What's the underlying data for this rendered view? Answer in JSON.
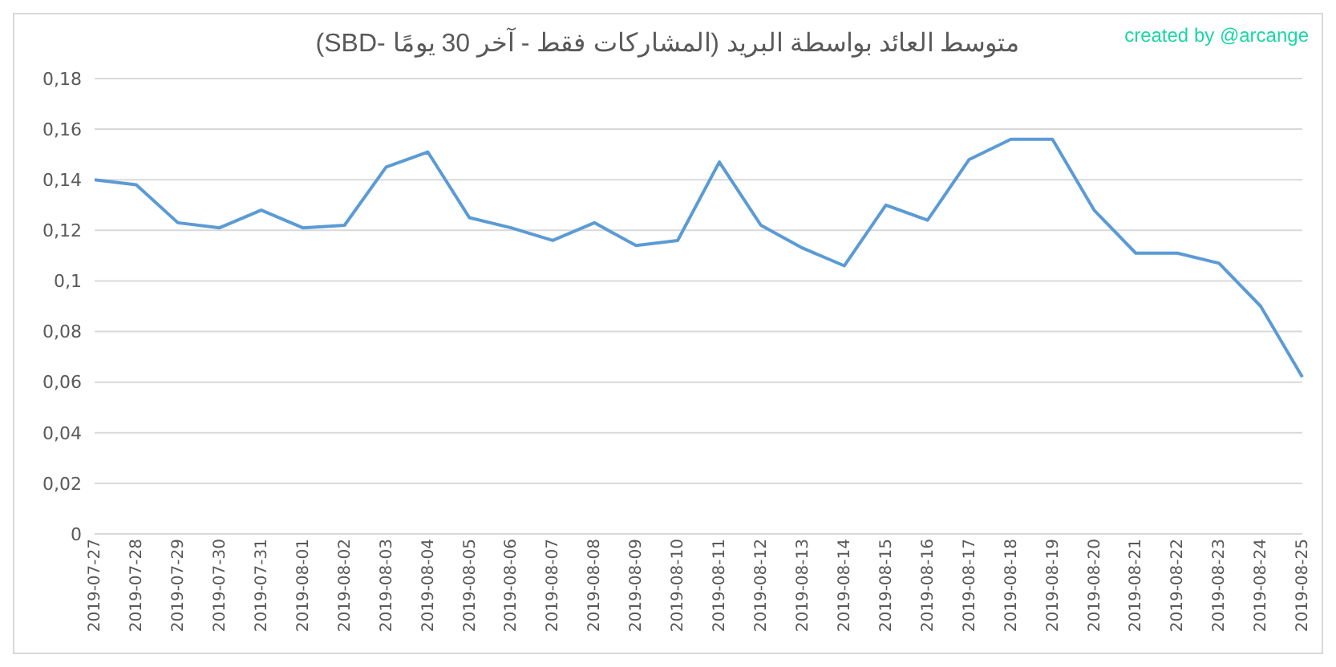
{
  "chart_data": {
    "type": "line",
    "title": "متوسط العائد بواسطة البريد (المشاركات فقط - آخر 30 يومًا -SBD)",
    "annotations": [
      "created by @arcange"
    ],
    "categories": [
      "2019-07-27",
      "2019-07-28",
      "2019-07-29",
      "2019-07-30",
      "2019-07-31",
      "2019-08-01",
      "2019-08-02",
      "2019-08-03",
      "2019-08-04",
      "2019-08-05",
      "2019-08-06",
      "2019-08-07",
      "2019-08-08",
      "2019-08-09",
      "2019-08-10",
      "2019-08-11",
      "2019-08-12",
      "2019-08-13",
      "2019-08-14",
      "2019-08-15",
      "2019-08-16",
      "2019-08-17",
      "2019-08-18",
      "2019-08-19",
      "2019-08-20",
      "2019-08-21",
      "2019-08-22",
      "2019-08-23",
      "2019-08-24",
      "2019-08-25"
    ],
    "series": [
      {
        "color": "#5b9bd5",
        "values": [
          0.14,
          0.138,
          0.123,
          0.121,
          0.128,
          0.121,
          0.122,
          0.145,
          0.151,
          0.125,
          0.121,
          0.116,
          0.123,
          0.114,
          0.116,
          0.147,
          0.122,
          0.113,
          0.106,
          0.13,
          0.124,
          0.148,
          0.156,
          0.156,
          0.128,
          0.111,
          0.111,
          0.107,
          0.09,
          0.062
        ]
      }
    ],
    "ylim": [
      0,
      0.18
    ],
    "yticks": [
      0,
      {
        "value": 0.02,
        "label": "0,02"
      },
      {
        "value": 0.04,
        "label": "0,04"
      },
      {
        "value": 0.06,
        "label": "0,06"
      },
      {
        "value": 0.08,
        "label": "0,08"
      },
      {
        "value": 0.1,
        "label": "0,1"
      },
      {
        "value": 0.12,
        "label": "0,12"
      },
      {
        "value": 0.14,
        "label": "0,14"
      },
      {
        "value": 0.16,
        "label": "0,16"
      },
      {
        "value": 0.18,
        "label": "0,18"
      }
    ],
    "grid": "y",
    "marker": "none",
    "line_style": "solid"
  }
}
